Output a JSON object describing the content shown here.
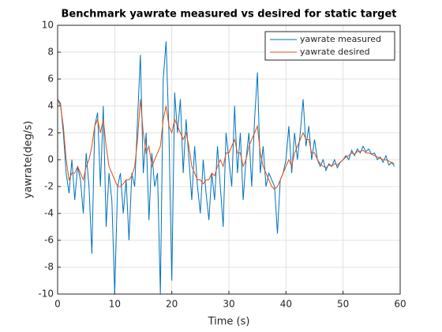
{
  "chart_data": {
    "type": "line",
    "title": "Benchmark yawrate measured vs desired for static target",
    "xlabel": "Time (s)",
    "ylabel": "yawrate(deg/s)",
    "x": [
      0,
      0.5,
      1,
      1.5,
      2,
      2.5,
      3,
      3.5,
      4,
      4.5,
      5,
      5.5,
      6,
      6.5,
      7,
      7.5,
      8,
      8.5,
      9,
      9.5,
      10,
      10.5,
      11,
      11.5,
      12,
      12.5,
      13,
      13.5,
      14,
      14.5,
      15,
      15.5,
      16,
      16.5,
      17,
      17.5,
      18,
      18.5,
      19,
      19.5,
      20,
      20.5,
      21,
      21.5,
      22,
      22.5,
      23,
      23.5,
      24,
      24.5,
      25,
      25.5,
      26,
      26.5,
      27,
      27.5,
      28,
      28.5,
      29,
      29.5,
      30,
      30.5,
      31,
      31.5,
      32,
      32.5,
      33,
      33.5,
      34,
      34.5,
      35,
      35.5,
      36,
      36.5,
      37,
      37.5,
      38,
      38.5,
      39,
      39.5,
      40,
      40.5,
      41,
      41.5,
      42,
      42.5,
      43,
      43.5,
      44,
      44.5,
      45,
      45.5,
      46,
      46.5,
      47,
      47.5,
      48,
      48.5,
      49,
      49.5,
      50,
      50.5,
      51,
      51.5,
      52,
      52.5,
      53,
      53.5,
      54,
      54.5,
      55,
      55.5,
      56,
      56.5,
      57,
      57.5,
      58,
      58.5,
      59
    ],
    "series": [
      {
        "name": "yawrate measured",
        "color": "#0072BD",
        "values": [
          4.5,
          4.2,
          2,
          -1,
          -2.5,
          0,
          -3,
          -0.5,
          -1.5,
          -4,
          0.5,
          -2,
          -7,
          2.5,
          3.5,
          -2,
          4,
          -5,
          -1,
          -3,
          -10,
          -2,
          -1,
          -4,
          -1.5,
          -6,
          -1,
          -2,
          3,
          7.8,
          -1,
          2,
          -4.5,
          0.5,
          -2,
          -1,
          -10,
          6,
          8.8,
          2,
          -9,
          5,
          2,
          4.5,
          -1,
          3,
          0,
          -3,
          1,
          -2,
          -4,
          0,
          -2.5,
          -4.5,
          -1,
          -3,
          1,
          -2,
          -5,
          2,
          0,
          -2,
          4,
          -1,
          2,
          -3,
          0,
          2,
          -2,
          3,
          6.5,
          -1,
          1,
          -2,
          -1,
          -1.5,
          -2,
          -5.5,
          -1.5,
          -1,
          0,
          2.5,
          -1,
          2,
          0,
          2,
          4.5,
          1,
          2.5,
          0,
          1.5,
          0,
          -0.5,
          0,
          -0.8,
          -0.3,
          -0.5,
          0,
          -0.6,
          -0.2,
          0,
          0.3,
          0,
          0.7,
          0.3,
          0.8,
          0.5,
          1,
          0.6,
          0.8,
          0.4,
          0.5,
          0,
          0.2,
          -0.2,
          0.3,
          -0.4,
          -0.2,
          -0.5
        ]
      },
      {
        "name": "yawrate desired",
        "color": "#D95319",
        "values": [
          4.5,
          4,
          2.5,
          0,
          -1.5,
          -1,
          -1,
          -0.5,
          -1,
          -1.5,
          -0.5,
          0,
          1,
          2.5,
          3,
          2,
          3,
          1,
          -0.5,
          -1,
          -1.5,
          -2,
          -2,
          -1.8,
          -1.5,
          -1.5,
          -1.2,
          -0.5,
          1.5,
          4.5,
          2,
          0.5,
          1,
          -0.5,
          0,
          0.5,
          1,
          3,
          4,
          2.5,
          2,
          3,
          2.5,
          2,
          1.5,
          2,
          1,
          -0.5,
          -1,
          -1.5,
          -1.5,
          -1.8,
          -1.5,
          -1.5,
          -1,
          -1.2,
          -0.5,
          0,
          -0.5,
          0.5,
          0.5,
          1,
          1.5,
          0.5,
          0.5,
          -0.5,
          0,
          1,
          1.5,
          2,
          2.5,
          0.5,
          -0.5,
          -1,
          -1.5,
          -2,
          -2.2,
          -2,
          -1.5,
          -1,
          -0.5,
          0,
          -0.5,
          0.5,
          1,
          1.5,
          2,
          1.5,
          1.5,
          0.5,
          0.5,
          0,
          -0.3,
          -0.5,
          -0.6,
          -0.4,
          -0.5,
          -0.3,
          -0.4,
          -0.2,
          0,
          0.2,
          0.3,
          0.5,
          0.4,
          0.6,
          0.6,
          0.7,
          0.5,
          0.5,
          0.4,
          0.3,
          0.2,
          0.1,
          0,
          0,
          -0.1,
          -0.2,
          -0.3
        ]
      }
    ],
    "xlim": [
      0,
      60
    ],
    "xticks": [
      0,
      10,
      20,
      30,
      40,
      50,
      60
    ],
    "ylim": [
      -10,
      10
    ],
    "yticks": [
      -10,
      -8,
      -6,
      -4,
      -2,
      0,
      2,
      4,
      6,
      8,
      10
    ],
    "grid": true,
    "legend": "northeast"
  }
}
